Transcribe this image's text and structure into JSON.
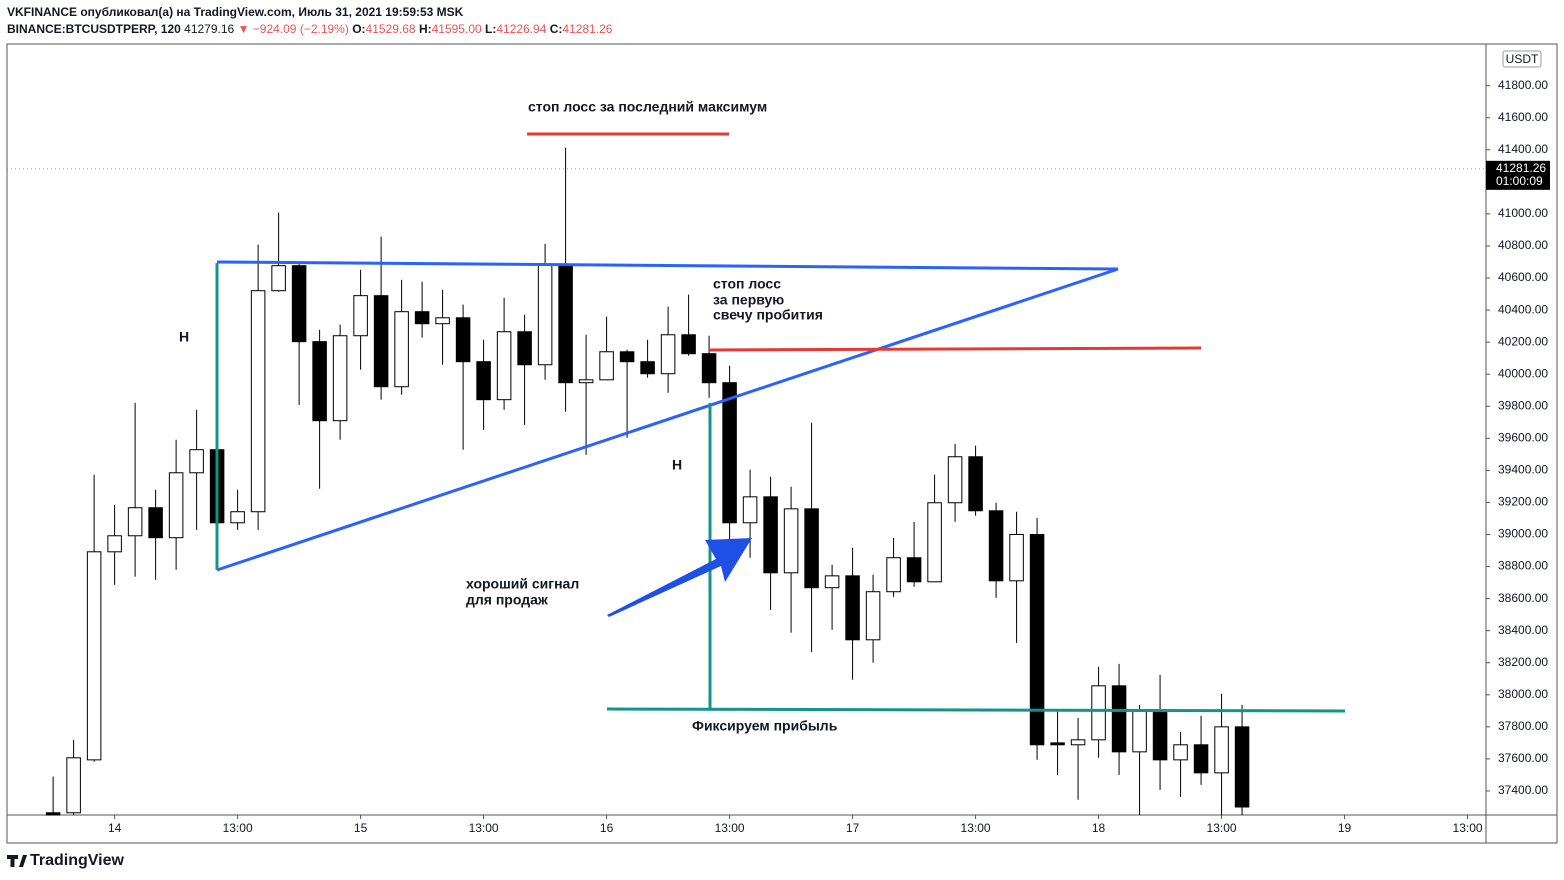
{
  "header": {
    "line1": "VKFINANCE опубликовал(а) на TradingView.com, Июль 31, 2021 19:59:53 MSK",
    "symbol": "BINANCE:BTCUSDTPERP, 120",
    "price": "41279.16",
    "change": "▼ −924.09 (−2.19%)",
    "o_label": "O:",
    "o": "41529.68",
    "h_label": "H:",
    "h": "41595.00",
    "l_label": "L:",
    "l": "41226.94",
    "c_label": "C:",
    "c": "41281.26"
  },
  "footer": "TradingView",
  "chart_data": {
    "type": "candlestick",
    "currency": "USDT",
    "last_price": 41281.26,
    "last_price_label": "41281.26",
    "countdown": "01:00:09",
    "xlim": [
      -2.25,
      69.9
    ],
    "ylim": [
      37250,
      42060
    ],
    "xticks": [
      {
        "value": 3,
        "label": "14"
      },
      {
        "value": 9,
        "label": "13:00"
      },
      {
        "value": 15,
        "label": "15"
      },
      {
        "value": 21,
        "label": "13:00"
      },
      {
        "value": 27,
        "label": "16"
      },
      {
        "value": 33,
        "label": "13:00"
      },
      {
        "value": 39,
        "label": "17"
      },
      {
        "value": 45,
        "label": "13:00"
      },
      {
        "value": 51,
        "label": "18"
      },
      {
        "value": 57,
        "label": "13:00"
      },
      {
        "value": 63,
        "label": "19"
      },
      {
        "value": 69,
        "label": "13:00"
      }
    ],
    "yticks": [
      {
        "value": 37400,
        "label": "37400.00"
      },
      {
        "value": 37600,
        "label": "37600.00"
      },
      {
        "value": 37800,
        "label": "37800.00"
      },
      {
        "value": 38000,
        "label": "38000.00"
      },
      {
        "value": 38200,
        "label": "38200.00"
      },
      {
        "value": 38400,
        "label": "38400.00"
      },
      {
        "value": 38600,
        "label": "38600.00"
      },
      {
        "value": 38800,
        "label": "38800.00"
      },
      {
        "value": 39000,
        "label": "39000.00"
      },
      {
        "value": 39200,
        "label": "39200.00"
      },
      {
        "value": 39400,
        "label": "39400.00"
      },
      {
        "value": 39600,
        "label": "39600.00"
      },
      {
        "value": 39800,
        "label": "39800.00"
      },
      {
        "value": 40000,
        "label": "40000.00"
      },
      {
        "value": 40200,
        "label": "40200.00"
      },
      {
        "value": 40400,
        "label": "40400.00"
      },
      {
        "value": 40600,
        "label": "40600.00"
      },
      {
        "value": 40800,
        "label": "40800.00"
      },
      {
        "value": 41000,
        "label": "41000.00"
      },
      {
        "value": 41400,
        "label": "41400.00"
      },
      {
        "value": 41600,
        "label": "41600.00"
      },
      {
        "value": 41800,
        "label": "41800.00"
      }
    ],
    "up_color": "#ffffff",
    "down_color": "#000000",
    "open": [
      37264,
      37264,
      37594,
      38892,
      38992,
      39167,
      38980,
      39385,
      39529,
      39073,
      39142,
      40521,
      40677,
      40203,
      39710,
      40240,
      40490,
      39922,
      40390,
      40315,
      40352,
      40078,
      39841,
      40265,
      40059,
      40683,
      39947,
      39965,
      40140,
      40078,
      40003,
      40246,
      40128,
      39947,
      39073,
      39235,
      38761,
      39160,
      38668,
      38742,
      38343,
      38643,
      38855,
      38705,
      39198,
      39485,
      39148,
      38711,
      39000,
      37700,
      37688,
      37719,
      38056,
      37644,
      37900,
      37594,
      37688,
      37513,
      37800
    ],
    "high": [
      37490,
      37719,
      39373,
      39185,
      39822,
      39279,
      39591,
      39778,
      39778,
      39279,
      40808,
      41008,
      40702,
      40277,
      40309,
      40652,
      40858,
      40589,
      40577,
      40527,
      40434,
      40215,
      40477,
      40371,
      40814,
      41413,
      40246,
      40359,
      40153,
      40215,
      40421,
      40496,
      40240,
      40053,
      39404,
      39360,
      39298,
      39697,
      38811,
      38917,
      38749,
      38979,
      39079,
      39373,
      39566,
      39554,
      39198,
      39142,
      39104,
      37894,
      37856,
      38175,
      38193,
      37937,
      38125,
      37769,
      37869,
      38006,
      37937
    ],
    "low": [
      37150,
      37250,
      37582,
      38686,
      38736,
      38717,
      38780,
      39029,
      38936,
      39029,
      39029,
      40515,
      39809,
      39285,
      39591,
      40028,
      39841,
      39872,
      40228,
      40059,
      39529,
      39653,
      39778,
      39684,
      39965,
      39766,
      39497,
      39965,
      39603,
      39978,
      39884,
      40115,
      39853,
      38873,
      38855,
      38530,
      38387,
      38268,
      38405,
      38094,
      38200,
      38611,
      38674,
      38705,
      39079,
      39117,
      38605,
      38324,
      37594,
      37500,
      37345,
      37607,
      37500,
      37250,
      37407,
      37363,
      37438,
      37250,
      37250
    ],
    "close": [
      37200,
      37607,
      38892,
      38992,
      39167,
      38980,
      39385,
      39529,
      39073,
      39142,
      40521,
      40677,
      40203,
      39710,
      40240,
      40490,
      39922,
      40390,
      40315,
      40352,
      40078,
      39841,
      40265,
      40059,
      40683,
      39947,
      39965,
      40140,
      40078,
      40003,
      40246,
      40128,
      39947,
      39073,
      39235,
      38761,
      39160,
      38668,
      38742,
      38343,
      38643,
      38855,
      38705,
      39198,
      39485,
      39148,
      38711,
      39000,
      37688,
      37688,
      37719,
      38056,
      37644,
      37900,
      37594,
      37688,
      37513,
      37800,
      37300
    ],
    "annotations": {
      "stop_top": "стоп лосс за последний максимум",
      "stop_break": [
        "стоп лосс",
        "за первую",
        "свечу пробития"
      ],
      "h1": "H",
      "h2": "H",
      "signal": [
        "хороший сигнал",
        "для продаж"
      ],
      "profit": "Фиксируем прибыль"
    }
  }
}
